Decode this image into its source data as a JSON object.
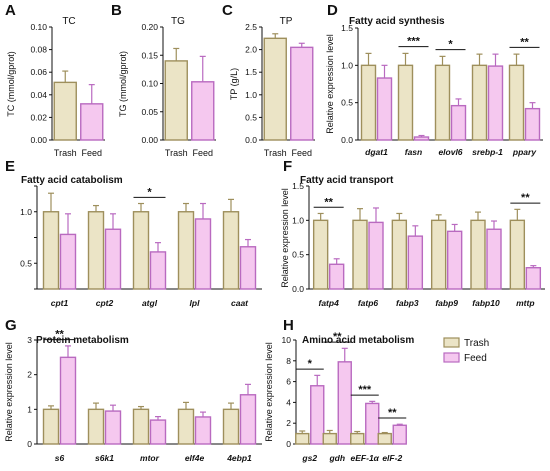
{
  "legend": {
    "groups": [
      "Trash",
      "Feed"
    ],
    "colors": {
      "Trash": "#ebe4c6",
      "Feed": "#f5c8ef"
    },
    "edges": {
      "Trash": "#9e8f5c",
      "Feed": "#b96ac0"
    }
  },
  "chart_data": [
    {
      "panel": "A",
      "type": "bar",
      "title": "TC",
      "ylabel": "TC (mmol/gprot)",
      "categories": [
        "Trash",
        "Feed"
      ],
      "values": [
        0.051,
        0.032
      ],
      "errors": [
        0.01,
        0.017
      ],
      "ylim": [
        0,
        0.1
      ],
      "yticks": [
        "0.00",
        "0.02",
        "0.04",
        "0.06",
        "0.08",
        "0.10"
      ],
      "significance": []
    },
    {
      "panel": "B",
      "type": "bar",
      "title": "TG",
      "ylabel": "TG (mmol/gprot)",
      "categories": [
        "Trash",
        "Feed"
      ],
      "values": [
        0.14,
        0.103
      ],
      "errors": [
        0.022,
        0.045
      ],
      "ylim": [
        0,
        0.2
      ],
      "yticks": [
        "0.00",
        "0.05",
        "0.10",
        "0.15",
        "0.20"
      ],
      "significance": []
    },
    {
      "panel": "C",
      "type": "bar",
      "title": "TP",
      "ylabel": "TP (g/L)",
      "categories": [
        "Trash",
        "Feed"
      ],
      "values": [
        2.25,
        2.05
      ],
      "errors": [
        0.1,
        0.09
      ],
      "ylim": [
        0,
        2.5
      ],
      "yticks": [
        "0.0",
        "0.5",
        "1.0",
        "1.5",
        "2.0",
        "2.5"
      ],
      "significance": []
    },
    {
      "panel": "D",
      "type": "bar",
      "title": "Fatty acid synthesis",
      "ylabel": "Relative expression level",
      "categories": [
        "dgat1",
        "fasn",
        "elovl6",
        "srebp-1",
        "ppary"
      ],
      "series": [
        {
          "name": "Trash",
          "values": [
            1.0,
            1.0,
            1.0,
            1.0,
            1.0
          ],
          "errors": [
            0.16,
            0.16,
            0.12,
            0.15,
            0.15
          ]
        },
        {
          "name": "Feed",
          "values": [
            0.83,
            0.04,
            0.46,
            0.99,
            0.42
          ],
          "errors": [
            0.17,
            0.02,
            0.09,
            0.16,
            0.08
          ]
        }
      ],
      "ylim": [
        0,
        1.5
      ],
      "yticks": [
        "0.0",
        "0.5",
        "1.0",
        "1.5"
      ],
      "significance": [
        {
          "index": 1,
          "label": "***"
        },
        {
          "index": 2,
          "label": "*"
        },
        {
          "index": 4,
          "label": "**"
        }
      ]
    },
    {
      "panel": "E",
      "type": "bar",
      "title": "Fatty acid catabolism",
      "ylabel": "Relative expression level",
      "categories": [
        "cpt1",
        "cpt2",
        "atgl",
        "lpl",
        "caat"
      ],
      "series": [
        {
          "name": "Trash",
          "values": [
            1.0,
            1.0,
            1.0,
            1.0,
            1.0
          ],
          "errors": [
            0.18,
            0.06,
            0.08,
            0.08,
            0.12
          ]
        },
        {
          "name": "Feed",
          "values": [
            0.78,
            0.83,
            0.61,
            0.93,
            0.66
          ],
          "errors": [
            0.2,
            0.15,
            0.09,
            0.15,
            0.07
          ]
        }
      ],
      "ylim": [
        0.25,
        1.25
      ],
      "yticks": [
        "0.25",
        "0.50",
        "0.75",
        "1.00",
        "1.25"
      ],
      "yticks_shown": [
        "",
        "0.5",
        "",
        "1.0",
        ""
      ],
      "significance": [
        {
          "index": 2,
          "label": "*"
        }
      ]
    },
    {
      "panel": "F",
      "type": "bar",
      "title": "Fatty acid transport",
      "ylabel": "Relative expression level",
      "categories": [
        "fatp4",
        "fatp6",
        "fabp3",
        "fabp9",
        "fabp10",
        "mttp"
      ],
      "series": [
        {
          "name": "Trash",
          "values": [
            1.0,
            1.0,
            1.0,
            1.0,
            1.0,
            1.0
          ],
          "errors": [
            0.1,
            0.17,
            0.1,
            0.08,
            0.12,
            0.16
          ]
        },
        {
          "name": "Feed",
          "values": [
            0.36,
            0.97,
            0.77,
            0.84,
            0.87,
            0.31
          ],
          "errors": [
            0.08,
            0.21,
            0.15,
            0.1,
            0.12,
            0.03
          ]
        }
      ],
      "ylim": [
        0,
        1.5
      ],
      "yticks": [
        "0.0",
        "0.5",
        "1.0",
        "1.5"
      ],
      "significance": [
        {
          "index": 0,
          "label": "**"
        },
        {
          "index": 5,
          "label": "**"
        }
      ]
    },
    {
      "panel": "G",
      "type": "bar",
      "title": "Protein metabolism",
      "ylabel": "Relative expression level",
      "categories": [
        "s6",
        "s6k1",
        "mtor",
        "elf4e",
        "4ebp1"
      ],
      "series": [
        {
          "name": "Trash",
          "values": [
            1.0,
            1.0,
            1.0,
            1.0,
            1.0
          ],
          "errors": [
            0.1,
            0.18,
            0.08,
            0.2,
            0.18
          ]
        },
        {
          "name": "Feed",
          "values": [
            2.5,
            0.95,
            0.69,
            0.78,
            1.42
          ],
          "errors": [
            0.33,
            0.17,
            0.1,
            0.14,
            0.3
          ]
        }
      ],
      "ylim": [
        0,
        3
      ],
      "yticks": [
        "0",
        "1",
        "2",
        "3"
      ],
      "significance": [
        {
          "index": 0,
          "label": "**"
        }
      ]
    },
    {
      "panel": "H",
      "type": "bar",
      "title": "Amino acid metabolism",
      "ylabel": "Relative expression level",
      "categories": [
        "gs2",
        "gdh",
        "eEF-1α",
        "elF-2"
      ],
      "series": [
        {
          "name": "Trash",
          "values": [
            1.0,
            1.0,
            1.0,
            1.0
          ],
          "errors": [
            0.25,
            0.3,
            0.2,
            0.1
          ]
        },
        {
          "name": "Feed",
          "values": [
            5.6,
            7.9,
            3.9,
            1.8
          ],
          "errors": [
            1.0,
            1.3,
            0.2,
            0.1
          ]
        }
      ],
      "ylim": [
        0,
        10
      ],
      "yticks": [
        "0",
        "2",
        "4",
        "6",
        "8",
        "10"
      ],
      "significance": [
        {
          "index": 0,
          "label": "*"
        },
        {
          "index": 1,
          "label": "**"
        },
        {
          "index": 2,
          "label": "***"
        },
        {
          "index": 3,
          "label": "**"
        }
      ]
    }
  ]
}
